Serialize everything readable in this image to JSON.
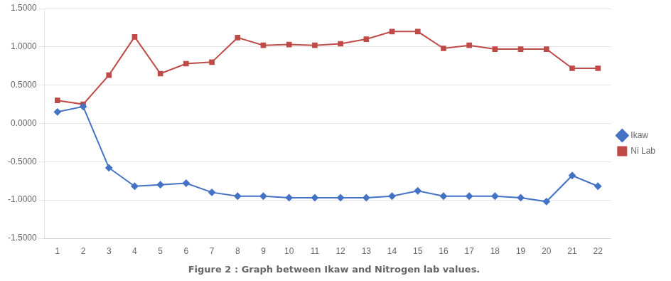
{
  "chart_data": {
    "type": "line",
    "title": "Figure 2 : Graph between Ikaw and Nitrogen lab values.",
    "x": [
      1,
      2,
      3,
      4,
      5,
      6,
      7,
      8,
      9,
      10,
      11,
      12,
      13,
      14,
      15,
      16,
      17,
      18,
      19,
      20,
      21,
      22
    ],
    "series": [
      {
        "name": "Ikaw",
        "color": "#4472C4",
        "marker": "diamond",
        "values": [
          0.15,
          0.22,
          -0.58,
          -0.82,
          -0.8,
          -0.78,
          -0.9,
          -0.95,
          -0.95,
          -0.97,
          -0.97,
          -0.97,
          -0.97,
          -0.95,
          -0.88,
          -0.95,
          -0.95,
          -0.95,
          -0.97,
          -1.02,
          -0.68,
          -0.82
        ]
      },
      {
        "name": "Ni Lab",
        "color": "#BE4B48",
        "marker": "square",
        "values": [
          0.3,
          0.25,
          0.63,
          1.13,
          0.65,
          0.78,
          0.8,
          1.12,
          1.02,
          1.03,
          1.02,
          1.04,
          1.1,
          1.2,
          1.2,
          0.98,
          1.02,
          0.97,
          0.97,
          0.97,
          0.72,
          0.72
        ]
      }
    ],
    "xlim": [
      0.5,
      22.5
    ],
    "xticks": [
      1,
      2,
      3,
      4,
      5,
      6,
      7,
      8,
      9,
      10,
      11,
      12,
      13,
      14,
      15,
      16,
      17,
      18,
      19,
      20,
      21,
      22
    ],
    "ylim": [
      -1.5,
      1.5
    ],
    "yticks": [
      {
        "value": -1.5,
        "label": "-1.5000"
      },
      {
        "value": -1.0,
        "label": "-1.0000"
      },
      {
        "value": -0.5,
        "label": "-0.5000"
      },
      {
        "value": 0.0,
        "label": "0.0000"
      },
      {
        "value": 0.5,
        "label": "0.5000"
      },
      {
        "value": 1.0,
        "label": "1.0000"
      },
      {
        "value": 1.5,
        "label": "1.5000"
      }
    ],
    "grid": "y",
    "legend": "right"
  }
}
